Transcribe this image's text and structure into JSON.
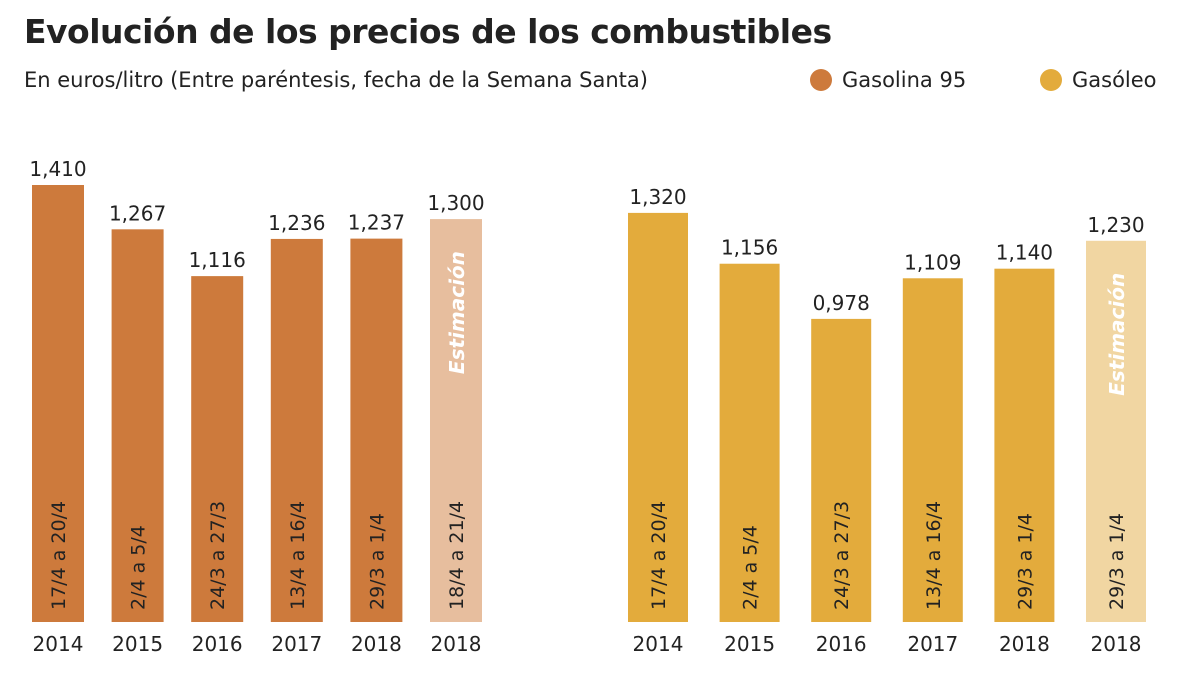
{
  "title": "Evolución de los precios de los combustibles",
  "subtitle": "En euros/litro (Entre paréntesis, fecha de la Semana Santa)",
  "colors": {
    "gasolina": "#CD7A3C",
    "gasolina_est": "#E7BE9E",
    "gasoleo": "#E3AB3C",
    "gasoleo_est": "#F1D6A2"
  },
  "chart_data": [
    {
      "type": "bar",
      "series_name": "Gasolina 95",
      "categories": [
        "2014",
        "2015",
        "2016",
        "2017",
        "2018",
        "2018"
      ],
      "values": [
        1.41,
        1.267,
        1.116,
        1.236,
        1.237,
        1.3
      ],
      "value_labels": [
        "1,410",
        "1,267",
        "1,116",
        "1,236",
        "1,237",
        "1,300"
      ],
      "date_labels": [
        "17/4 a 20/4",
        "2/4 a 5/4",
        "24/3 a 27/3",
        "13/4 a 16/4",
        "29/3 a 1/4",
        "18/4 a 21/4"
      ],
      "estimate": [
        false,
        false,
        false,
        false,
        false,
        true
      ],
      "estimate_label": "Estimación",
      "ylim": [
        0,
        1.41
      ]
    },
    {
      "type": "bar",
      "series_name": "Gasóleo",
      "categories": [
        "2014",
        "2015",
        "2016",
        "2017",
        "2018",
        "2018"
      ],
      "values": [
        1.32,
        1.156,
        0.978,
        1.109,
        1.14,
        1.23
      ],
      "value_labels": [
        "1,320",
        "1,156",
        "0,978",
        "1,109",
        "1,140",
        "1,230"
      ],
      "date_labels": [
        "17/4 a 20/4",
        "2/4 a 5/4",
        "24/3 a 27/3",
        "13/4 a 16/4",
        "29/3 a 1/4",
        "29/3 a 1/4"
      ],
      "estimate": [
        false,
        false,
        false,
        false,
        false,
        true
      ],
      "estimate_label": "Estimación",
      "ylim": [
        0,
        1.41
      ]
    }
  ]
}
